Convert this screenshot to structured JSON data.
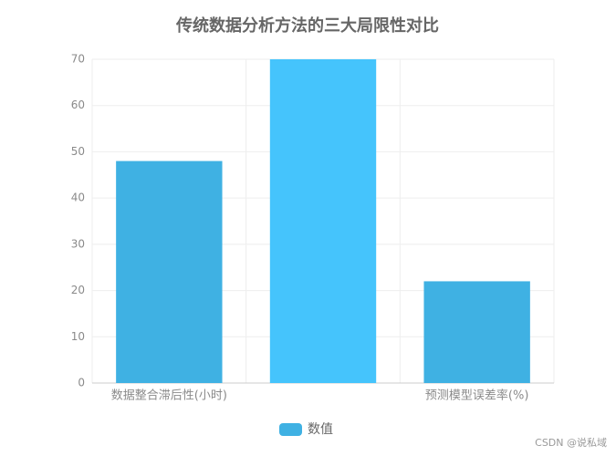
{
  "chart_data": {
    "type": "bar",
    "title": "传统数据分析方法的三大局限性对比",
    "categories": [
      "数据整合滞后性(小时)",
      null,
      "预测模型误差率(%)"
    ],
    "series": [
      {
        "name": "数值",
        "color": "#3fb1e3",
        "values": [
          48,
          70,
          22
        ],
        "bar_colors": [
          "#3fb1e3",
          "#45c4fc",
          "#3fb1e3"
        ]
      }
    ],
    "ylim": [
      0,
      70
    ],
    "yticks": [
      0,
      10,
      20,
      30,
      40,
      50,
      60,
      70
    ],
    "grid": true,
    "legend": "bottom",
    "watermark": "CSDN @说私域"
  }
}
